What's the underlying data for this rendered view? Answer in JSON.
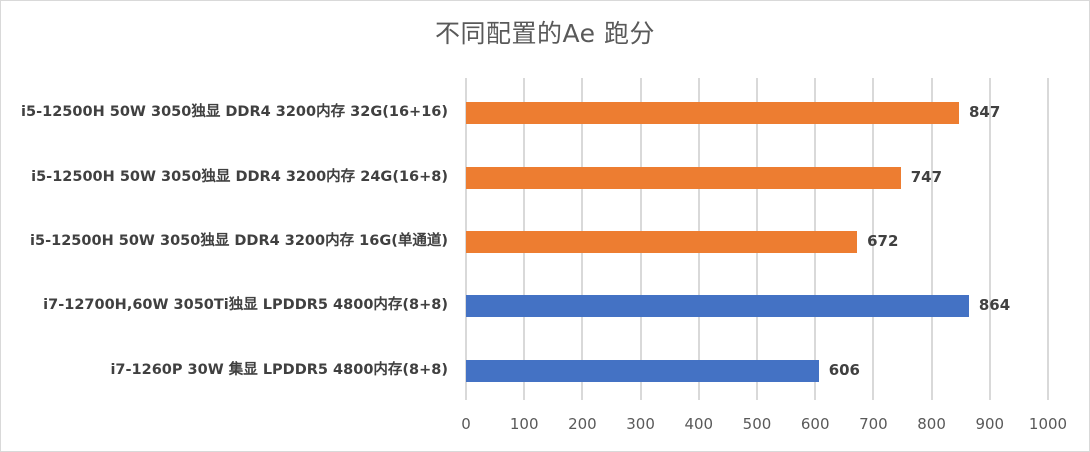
{
  "chart_data": {
    "type": "bar",
    "orientation": "horizontal",
    "title": "不同配置的Ae 跑分",
    "xlabel": "",
    "ylabel": "",
    "xlim": [
      0,
      1000
    ],
    "x_ticks": [
      "0",
      "100",
      "200",
      "300",
      "400",
      "500",
      "600",
      "700",
      "800",
      "900",
      "1000"
    ],
    "grid": true,
    "legend": null,
    "categories": [
      "i5-12500H 50W 3050独显 DDR4 3200内存 32G(16+16)",
      "i5-12500H 50W  3050独显 DDR4 3200内存 24G(16+8)",
      "i5-12500H 50W  3050独显 DDR4 3200内存 16G(单通道)",
      "i7-12700H,60W 3050Ti独显 LPDDR5 4800内存(8+8)",
      "i7-1260P 30W 集显 LPDDR5 4800内存(8+8)"
    ],
    "values": [
      847,
      747,
      672,
      864,
      606
    ],
    "value_labels": [
      "847",
      "747",
      "672",
      "864",
      "606"
    ],
    "bar_colors": [
      "#ed7d31",
      "#ed7d31",
      "#ed7d31",
      "#4472c4",
      "#4472c4"
    ]
  },
  "colors": {
    "orange": "#ed7d31",
    "blue": "#4472c4",
    "grid": "#d9d9d9",
    "text": "#404040",
    "axis_text": "#595959"
  }
}
